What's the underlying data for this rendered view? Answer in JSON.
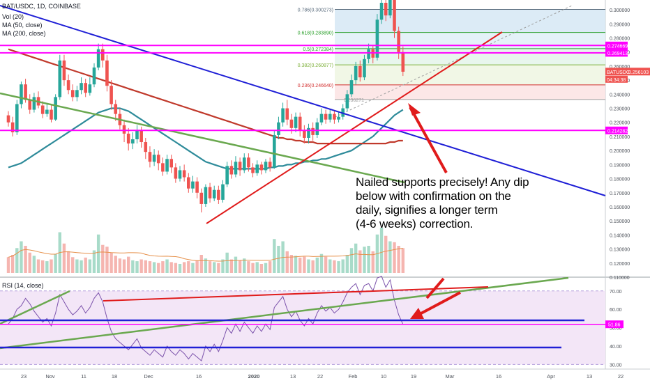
{
  "header": {
    "symbol": "BAT/USDC, 1D, COINBASE",
    "vol": "Vol (20)",
    "ma50": "MA (50, close)",
    "ma200": "MA (200, close)",
    "rsi": "RSI (14, close)"
  },
  "annotation": {
    "line1": "Nailed supports precisely! Any dip",
    "line2": "below with confirmation on the",
    "line3": "daily, signifies a longer term",
    "line4": "(4-6 weeks) correction."
  },
  "colors": {
    "up": "#26a69a",
    "down": "#ef5350",
    "trend_blue": "#1f1fd6",
    "trend_red": "#e01b1b",
    "trend_green": "#6aa84f",
    "magenta": "#ff00ff",
    "ma50": "#2e8b9a",
    "ma200": "#c0392b",
    "rsi_bg": "#f3e6f7",
    "rsi_line": "#7b52ab"
  },
  "chart_data": {
    "type": "candlestick",
    "title": "BAT/USDC, 1D, COINBASE",
    "ylim": [
      0.11,
      0.305
    ],
    "price_ticks": [
      "0.300000",
      "0.290000",
      "0.280000",
      "0.270000",
      "0.260000",
      "0.250000",
      "0.240000",
      "0.230000",
      "0.220000",
      "0.210000",
      "0.200000",
      "0.190000",
      "0.180000",
      "0.170000",
      "0.160000",
      "0.150000",
      "0.140000",
      "0.130000",
      "0.120000",
      "0.110000"
    ],
    "x_ticks": [
      "23",
      "Nov",
      "11",
      "18",
      "Dec",
      "16",
      "2020",
      "13",
      "22",
      "Feb",
      "10",
      "19",
      "Mar",
      "16",
      "Apr",
      "13",
      "22"
    ],
    "fib_levels": [
      {
        "label": "0.786(0.300273)",
        "value": 0.300273
      },
      {
        "label": "0.618(0.283890)",
        "value": 0.28389
      },
      {
        "label": "0.5(0.272384)",
        "value": 0.272384
      },
      {
        "label": "0.382(0.260877)",
        "value": 0.260877
      },
      {
        "label": "0.236(0.246640)",
        "value": 0.24664
      },
      {
        "label": "0.236271",
        "value": 0.236271
      }
    ],
    "price_labels": [
      {
        "label": "0.274669",
        "value": 0.274669,
        "color": "#ff00ff"
      },
      {
        "label": "0.269413",
        "value": 0.269413,
        "color": "#ff00ff"
      },
      {
        "label": "BATUSDC",
        "value": 0.256103,
        "color": "#ef5350"
      },
      {
        "label": "0.256103",
        "value": 0.256103,
        "color": "#ef5350"
      },
      {
        "label": "04:34:38",
        "value": 0.2472,
        "color": "#ef5350"
      },
      {
        "label": "0.214282",
        "value": 0.214282,
        "color": "#ff00ff"
      }
    ],
    "candles": [
      [
        0.225,
        0.22,
        0.228,
        0.217
      ],
      [
        0.22,
        0.213,
        0.224,
        0.21
      ],
      [
        0.213,
        0.233,
        0.236,
        0.211
      ],
      [
        0.233,
        0.247,
        0.249,
        0.23
      ],
      [
        0.247,
        0.236,
        0.251,
        0.234
      ],
      [
        0.236,
        0.229,
        0.24,
        0.226
      ],
      [
        0.229,
        0.238,
        0.241,
        0.227
      ],
      [
        0.238,
        0.232,
        0.242,
        0.23
      ],
      [
        0.232,
        0.226,
        0.235,
        0.223
      ],
      [
        0.226,
        0.229,
        0.233,
        0.224
      ],
      [
        0.229,
        0.222,
        0.232,
        0.22
      ],
      [
        0.222,
        0.238,
        0.24,
        0.221
      ],
      [
        0.238,
        0.264,
        0.268,
        0.236
      ],
      [
        0.264,
        0.25,
        0.268,
        0.246
      ],
      [
        0.25,
        0.243,
        0.254,
        0.24
      ],
      [
        0.243,
        0.238,
        0.247,
        0.235
      ],
      [
        0.238,
        0.243,
        0.246,
        0.235
      ],
      [
        0.243,
        0.248,
        0.252,
        0.24
      ],
      [
        0.248,
        0.241,
        0.251,
        0.238
      ],
      [
        0.241,
        0.247,
        0.252,
        0.239
      ],
      [
        0.247,
        0.259,
        0.262,
        0.245
      ],
      [
        0.259,
        0.272,
        0.276,
        0.257
      ],
      [
        0.272,
        0.264,
        0.276,
        0.259
      ],
      [
        0.264,
        0.246,
        0.268,
        0.242
      ],
      [
        0.246,
        0.233,
        0.25,
        0.229
      ],
      [
        0.233,
        0.226,
        0.236,
        0.221
      ],
      [
        0.226,
        0.218,
        0.23,
        0.215
      ],
      [
        0.218,
        0.212,
        0.222,
        0.206
      ],
      [
        0.212,
        0.205,
        0.216,
        0.2
      ],
      [
        0.205,
        0.208,
        0.213,
        0.201
      ],
      [
        0.208,
        0.214,
        0.218,
        0.205
      ],
      [
        0.214,
        0.206,
        0.217,
        0.202
      ],
      [
        0.206,
        0.199,
        0.209,
        0.194
      ],
      [
        0.199,
        0.192,
        0.203,
        0.188
      ],
      [
        0.192,
        0.197,
        0.201,
        0.189
      ],
      [
        0.197,
        0.191,
        0.2,
        0.186
      ],
      [
        0.191,
        0.185,
        0.195,
        0.182
      ],
      [
        0.185,
        0.194,
        0.197,
        0.183
      ],
      [
        0.194,
        0.188,
        0.197,
        0.184
      ],
      [
        0.188,
        0.18,
        0.191,
        0.177
      ],
      [
        0.18,
        0.186,
        0.189,
        0.178
      ],
      [
        0.186,
        0.181,
        0.19,
        0.178
      ],
      [
        0.181,
        0.173,
        0.184,
        0.17
      ],
      [
        0.173,
        0.178,
        0.182,
        0.17
      ],
      [
        0.178,
        0.17,
        0.181,
        0.166
      ],
      [
        0.17,
        0.162,
        0.173,
        0.156
      ],
      [
        0.162,
        0.174,
        0.176,
        0.16
      ],
      [
        0.174,
        0.166,
        0.177,
        0.163
      ],
      [
        0.166,
        0.172,
        0.175,
        0.164
      ],
      [
        0.172,
        0.165,
        0.175,
        0.162
      ],
      [
        0.165,
        0.176,
        0.179,
        0.163
      ],
      [
        0.176,
        0.189,
        0.192,
        0.174
      ],
      [
        0.189,
        0.183,
        0.193,
        0.18
      ],
      [
        0.183,
        0.192,
        0.196,
        0.181
      ],
      [
        0.192,
        0.186,
        0.195,
        0.182
      ],
      [
        0.186,
        0.195,
        0.198,
        0.184
      ],
      [
        0.195,
        0.188,
        0.198,
        0.185
      ],
      [
        0.188,
        0.184,
        0.191,
        0.181
      ],
      [
        0.184,
        0.19,
        0.193,
        0.182
      ],
      [
        0.19,
        0.186,
        0.192,
        0.183
      ],
      [
        0.186,
        0.192,
        0.194,
        0.184
      ],
      [
        0.192,
        0.188,
        0.195,
        0.185
      ],
      [
        0.188,
        0.211,
        0.214,
        0.187
      ],
      [
        0.211,
        0.22,
        0.224,
        0.208
      ],
      [
        0.22,
        0.23,
        0.234,
        0.217
      ],
      [
        0.23,
        0.222,
        0.236,
        0.218
      ],
      [
        0.222,
        0.216,
        0.226,
        0.212
      ],
      [
        0.216,
        0.224,
        0.227,
        0.213
      ],
      [
        0.224,
        0.214,
        0.227,
        0.21
      ],
      [
        0.214,
        0.209,
        0.218,
        0.205
      ],
      [
        0.209,
        0.216,
        0.219,
        0.205
      ],
      [
        0.216,
        0.211,
        0.22,
        0.207
      ],
      [
        0.211,
        0.22,
        0.223,
        0.209
      ],
      [
        0.22,
        0.226,
        0.23,
        0.218
      ],
      [
        0.226,
        0.222,
        0.229,
        0.219
      ],
      [
        0.222,
        0.226,
        0.229,
        0.22
      ],
      [
        0.226,
        0.222,
        0.228,
        0.219
      ],
      [
        0.222,
        0.224,
        0.227,
        0.22
      ],
      [
        0.224,
        0.23,
        0.233,
        0.222
      ],
      [
        0.23,
        0.24,
        0.243,
        0.228
      ],
      [
        0.24,
        0.25,
        0.254,
        0.238
      ],
      [
        0.25,
        0.26,
        0.263,
        0.247
      ],
      [
        0.26,
        0.252,
        0.264,
        0.249
      ],
      [
        0.252,
        0.265,
        0.268,
        0.25
      ],
      [
        0.265,
        0.272,
        0.276,
        0.262
      ],
      [
        0.272,
        0.266,
        0.275,
        0.262
      ],
      [
        0.266,
        0.293,
        0.297,
        0.264
      ],
      [
        0.293,
        0.305,
        0.31,
        0.29
      ],
      [
        0.305,
        0.296,
        0.312,
        0.292
      ],
      [
        0.296,
        0.308,
        0.312,
        0.294
      ],
      [
        0.308,
        0.285,
        0.311,
        0.28
      ],
      [
        0.285,
        0.27,
        0.288,
        0.265
      ],
      [
        0.27,
        0.256,
        0.274,
        0.253
      ]
    ],
    "volume_max": 1.0,
    "volumes": [
      0.35,
      0.4,
      0.55,
      0.7,
      0.6,
      0.45,
      0.38,
      0.3,
      0.28,
      0.26,
      0.3,
      0.42,
      0.9,
      0.65,
      0.48,
      0.35,
      0.3,
      0.28,
      0.34,
      0.3,
      0.5,
      0.85,
      0.62,
      0.58,
      0.45,
      0.38,
      0.32,
      0.3,
      0.36,
      0.28,
      0.26,
      0.3,
      0.28,
      0.26,
      0.24,
      0.22,
      0.26,
      0.3,
      0.24,
      0.22,
      0.2,
      0.24,
      0.26,
      0.22,
      0.28,
      0.4,
      0.32,
      0.26,
      0.24,
      0.22,
      0.3,
      0.45,
      0.3,
      0.36,
      0.28,
      0.32,
      0.26,
      0.22,
      0.24,
      0.2,
      0.22,
      0.26,
      0.75,
      0.6,
      0.7,
      0.48,
      0.4,
      0.38,
      0.34,
      0.36,
      0.3,
      0.28,
      0.34,
      0.42,
      0.36,
      0.3,
      0.28,
      0.26,
      0.3,
      0.4,
      0.55,
      0.65,
      0.5,
      0.58,
      0.6,
      0.48,
      0.85,
      1.0,
      0.82,
      0.7,
      0.68,
      0.6,
      0.55
    ],
    "rsi": {
      "ylim": [
        30,
        75
      ],
      "ticks": [
        "70.00",
        "60.00",
        "50.00",
        "40.00",
        "30.00"
      ],
      "level_label": "51.86",
      "values": [
        52,
        55,
        60,
        62,
        66,
        63,
        59,
        56,
        53,
        55,
        51,
        58,
        68,
        64,
        60,
        57,
        59,
        62,
        58,
        61,
        66,
        69,
        64,
        55,
        48,
        44,
        42,
        40,
        38,
        41,
        44,
        39,
        37,
        35,
        38,
        36,
        34,
        40,
        37,
        35,
        38,
        36,
        33,
        36,
        34,
        32,
        40,
        37,
        41,
        37,
        43,
        50,
        47,
        52,
        48,
        53,
        50,
        47,
        51,
        48,
        52,
        49,
        61,
        64,
        67,
        60,
        56,
        59,
        54,
        51,
        55,
        52,
        58,
        62,
        59,
        61,
        58,
        60,
        64,
        69,
        72,
        74,
        68,
        73,
        74,
        70,
        77,
        78,
        72,
        76,
        65,
        57,
        51.86
      ]
    },
    "ma50": [
      0.188,
      0.189,
      0.19,
      0.191,
      0.193,
      0.195,
      0.197,
      0.199,
      0.201,
      0.203,
      0.205,
      0.207,
      0.209,
      0.211,
      0.213,
      0.215,
      0.217,
      0.219,
      0.221,
      0.223,
      0.225,
      0.227,
      0.228,
      0.229,
      0.23,
      0.23,
      0.23,
      0.229,
      0.228,
      0.226,
      0.224,
      0.222,
      0.22,
      0.218,
      0.216,
      0.214,
      0.212,
      0.21,
      0.208,
      0.206,
      0.204,
      0.202,
      0.2,
      0.198,
      0.196,
      0.194,
      0.192,
      0.191,
      0.19,
      0.189,
      0.188,
      0.187,
      0.187,
      0.187,
      0.187,
      0.187,
      0.187,
      0.187,
      0.187,
      0.187,
      0.187,
      0.188,
      0.188,
      0.189,
      0.189,
      0.19,
      0.19,
      0.191,
      0.191,
      0.192,
      0.192,
      0.193,
      0.193,
      0.194,
      0.194,
      0.195,
      0.196,
      0.197,
      0.198,
      0.199,
      0.2,
      0.202,
      0.204,
      0.206,
      0.208,
      0.21,
      0.213,
      0.216,
      0.219,
      0.222,
      0.225,
      0.227,
      0.229
    ],
    "ma200": [
      0.272,
      0.271,
      0.27,
      0.269,
      0.268,
      0.267,
      0.266,
      0.265,
      0.264,
      0.263,
      0.262,
      0.261,
      0.26,
      0.259,
      0.258,
      0.257,
      0.256,
      0.255,
      0.254,
      0.253,
      0.252,
      0.251,
      0.25,
      0.249,
      0.248,
      0.247,
      0.246,
      0.245,
      0.244,
      0.243,
      0.242,
      0.241,
      0.24,
      0.239,
      0.238,
      0.237,
      0.236,
      0.235,
      0.234,
      0.233,
      0.232,
      0.231,
      0.23,
      0.229,
      0.228,
      0.227,
      0.226,
      0.225,
      0.224,
      0.223,
      0.222,
      0.221,
      0.22,
      0.219,
      0.218,
      0.217,
      0.216,
      0.215,
      0.214,
      0.213,
      0.212,
      0.211,
      0.21,
      0.209,
      0.209,
      0.208,
      0.208,
      0.207,
      0.207,
      0.206,
      0.206,
      0.206,
      0.205,
      0.205,
      0.205,
      0.205,
      0.205,
      0.205,
      0.205,
      0.205,
      0.205,
      0.205,
      0.205,
      0.205,
      0.205,
      0.205,
      0.205,
      0.205,
      0.205,
      0.206,
      0.206,
      0.207,
      0.207
    ]
  }
}
